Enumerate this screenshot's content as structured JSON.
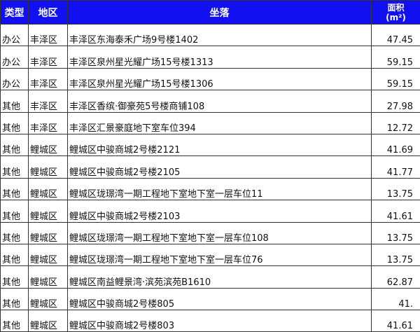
{
  "header": {
    "type": "类型",
    "district": "地区",
    "location": "坐落",
    "area": "面积",
    "area_unit": "(m²)"
  },
  "header_color": "#1010f0",
  "rows": [
    {
      "type": "办公",
      "district": "丰泽区",
      "location": "丰泽区东海泰禾广场9号楼1402",
      "area": "47.45"
    },
    {
      "type": "办公",
      "district": "丰泽区",
      "location": "丰泽区泉州星光耀广场15号楼1313",
      "area": "59.15"
    },
    {
      "type": "办公",
      "district": "丰泽区",
      "location": "丰泽区泉州星光耀广场15号楼1306",
      "area": "59.15"
    },
    {
      "type": "其他",
      "district": "丰泽区",
      "location": "丰泽区香缤·御豪苑5号楼商铺108",
      "area": "27.98"
    },
    {
      "type": "其他",
      "district": "丰泽区",
      "location": "丰泽区汇景豪庭地下室车位394",
      "area": "12.72"
    },
    {
      "type": "其他",
      "district": "鲤城区",
      "location": "鲤城区中骏商城2号楼2121",
      "area": "41.69"
    },
    {
      "type": "其他",
      "district": "鲤城区",
      "location": "鲤城区中骏商城2号楼2105",
      "area": "41.77"
    },
    {
      "type": "其他",
      "district": "鲤城区",
      "location": "鲤城区珑璟湾一期工程地下室地下室一层车位11",
      "area": "13.75"
    },
    {
      "type": "其他",
      "district": "鲤城区",
      "location": "鲤城区中骏商城2号楼2103",
      "area": "41.61"
    },
    {
      "type": "其他",
      "district": "鲤城区",
      "location": "鲤城区珑璟湾一期工程地下室地下室一层车位108",
      "area": "13.75"
    },
    {
      "type": "其他",
      "district": "鲤城区",
      "location": "鲤城区珑璟湾一期工程地下室地下室一层车位76",
      "area": "13.75"
    },
    {
      "type": "其他",
      "district": "鲤城区",
      "location": "鲤城区南益鲤景湾·滨苑滨苑B1610",
      "area": "62.87"
    },
    {
      "type": "其他",
      "district": "鲤城区",
      "location": "鲤城区中骏商城2号楼805",
      "area": "41."
    },
    {
      "type": "其他",
      "district": "鲤城区",
      "location": "鲤城区中骏商城2号楼803",
      "area": "41.61"
    }
  ]
}
